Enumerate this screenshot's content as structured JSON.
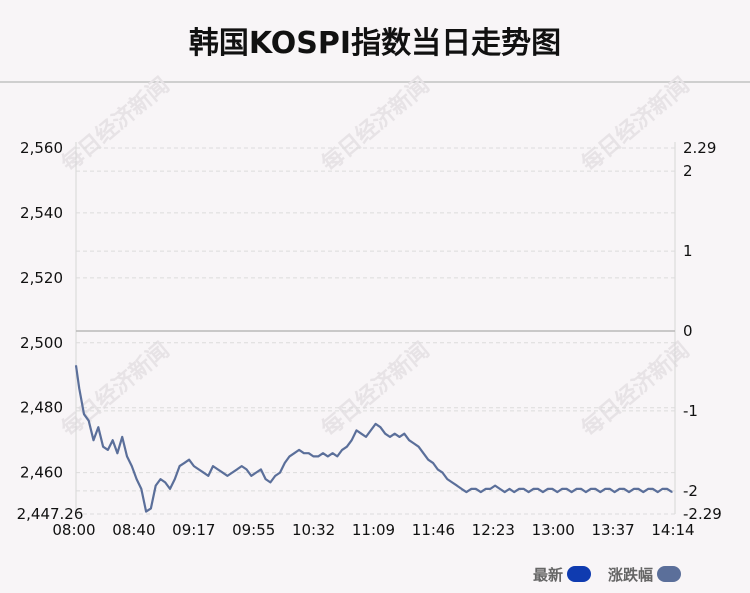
{
  "chart_data": {
    "type": "line",
    "title": "韩国KOSPI指数当日走势图",
    "x_tick_labels": [
      "08:00",
      "08:40",
      "09:17",
      "09:55",
      "10:32",
      "11:09",
      "11:46",
      "12:23",
      "13:00",
      "13:37",
      "14:14"
    ],
    "y_left_tick_labels": [
      "2,560",
      "2,540",
      "2,520",
      "2,500",
      "2,480",
      "2,460",
      "2,447.26"
    ],
    "y_left_ticks": [
      2560,
      2540,
      2520,
      2500,
      2480,
      2460
    ],
    "y_left_min_label_value": 2447.26,
    "y_right_tick_labels": [
      "2.29",
      "2",
      "1",
      "0",
      "-1",
      "-2",
      "-2.29"
    ],
    "y_right_ticks": [
      2.29,
      2,
      1,
      0,
      -1,
      -2,
      -2.29
    ],
    "y_left_range": [
      2447.26,
      2560
    ],
    "y_right_range": [
      -2.29,
      2.29
    ],
    "grid": true,
    "grid_style": "dashed",
    "zero_line_right_axis": 0,
    "legend_position": "bottom-right",
    "series": [
      {
        "name": "最新",
        "color": "#0f3bb0",
        "line_color": "#5b6f9a",
        "x": [
          0,
          2,
          5,
          8,
          11,
          14,
          17,
          20,
          23,
          26,
          29,
          32,
          35,
          38,
          41,
          44,
          47,
          50,
          53,
          56,
          59,
          62,
          65,
          68,
          71,
          74,
          77,
          80,
          83,
          86,
          89,
          92,
          95,
          98,
          101,
          104,
          107,
          110,
          113,
          116,
          119,
          122,
          125,
          128,
          131,
          134,
          137,
          140,
          143,
          146,
          149,
          152,
          155,
          158,
          161,
          164,
          167,
          170,
          173,
          176,
          179,
          182,
          185,
          188,
          191,
          194,
          197,
          200,
          203,
          206,
          209,
          212,
          215,
          218,
          221,
          224,
          227,
          230,
          233,
          236,
          239,
          242,
          245,
          248,
          251,
          254,
          257,
          260,
          263,
          266,
          269,
          272,
          275,
          278,
          281,
          284,
          287,
          290,
          293,
          296,
          299,
          302,
          305,
          308,
          311,
          314,
          317,
          320,
          323,
          326,
          329,
          332,
          335,
          338,
          341,
          344,
          347,
          350,
          353,
          356,
          359,
          362,
          365,
          368,
          371,
          374
        ],
        "values": [
          2493,
          2486,
          2478,
          2476,
          2470,
          2474,
          2468,
          2467,
          2470,
          2466,
          2471,
          2465,
          2462,
          2458,
          2455,
          2448,
          2449,
          2456,
          2458,
          2457,
          2455,
          2458,
          2462,
          2463,
          2464,
          2462,
          2461,
          2460,
          2459,
          2462,
          2461,
          2460,
          2459,
          2460,
          2461,
          2462,
          2461,
          2459,
          2460,
          2461,
          2458,
          2457,
          2459,
          2460,
          2463,
          2465,
          2466,
          2467,
          2466,
          2466,
          2465,
          2465,
          2466,
          2465,
          2466,
          2465,
          2467,
          2468,
          2470,
          2473,
          2472,
          2471,
          2473,
          2475,
          2474,
          2472,
          2471,
          2472,
          2471,
          2472,
          2470,
          2469,
          2468,
          2466,
          2464,
          2463,
          2461,
          2460,
          2458,
          2457,
          2456,
          2455,
          2454,
          2455,
          2455,
          2454,
          2455,
          2455,
          2456,
          2455,
          2454,
          2455,
          2454,
          2455,
          2455,
          2454,
          2455,
          2455,
          2454,
          2455,
          2455,
          2454,
          2455,
          2455,
          2454,
          2455,
          2455,
          2454,
          2455,
          2455,
          2454,
          2455,
          2455,
          2454,
          2455,
          2455,
          2454,
          2455,
          2455,
          2454,
          2455,
          2455,
          2454,
          2455,
          2455,
          2454
        ],
        "x_max": 374
      },
      {
        "name": "涨跌幅",
        "color": "#5b6f9a"
      }
    ]
  },
  "watermark": "每日经济新闻"
}
